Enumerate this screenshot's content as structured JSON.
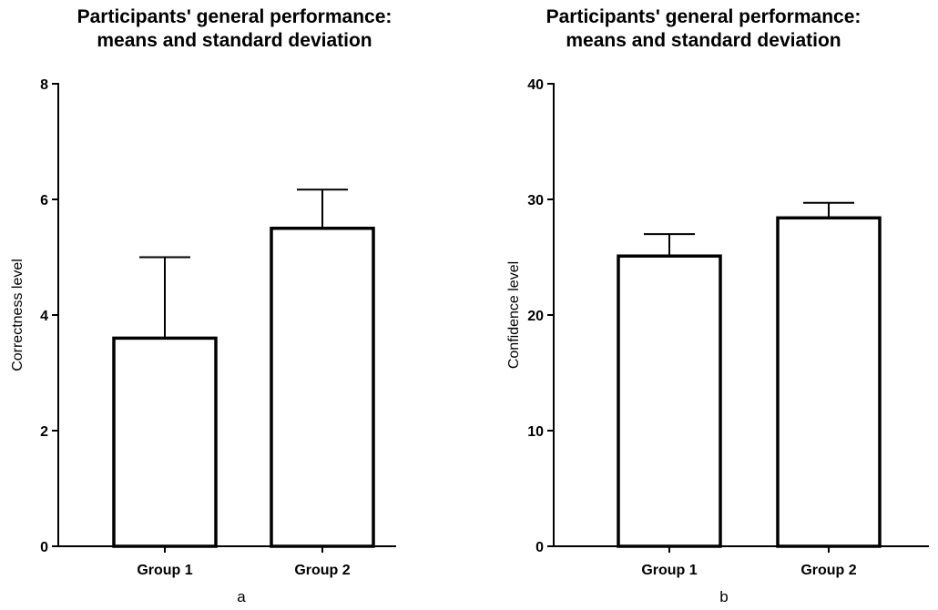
{
  "chart_data": [
    {
      "type": "bar",
      "title_line1": "Participants' general performance:",
      "title_line2": "means and standard deviation",
      "xlabel": "",
      "ylabel": "Correctness level",
      "categories": [
        "Group 1",
        "Group 2"
      ],
      "values": [
        3.6,
        5.5
      ],
      "error": [
        1.4,
        0.67
      ],
      "ylim": [
        0,
        8
      ],
      "yticks": [
        0,
        2,
        4,
        6,
        8
      ],
      "panel_label": "a",
      "grid": false
    },
    {
      "type": "bar",
      "title_line1": "Participants' general performance:",
      "title_line2": "means and standard deviation",
      "xlabel": "",
      "ylabel": "Confidence level",
      "categories": [
        "Group 1",
        "Group 2"
      ],
      "values": [
        25.1,
        28.4
      ],
      "error": [
        1.9,
        1.3
      ],
      "ylim": [
        0,
        40
      ],
      "yticks": [
        0,
        10,
        20,
        30,
        40
      ],
      "panel_label": "b",
      "grid": false
    }
  ]
}
